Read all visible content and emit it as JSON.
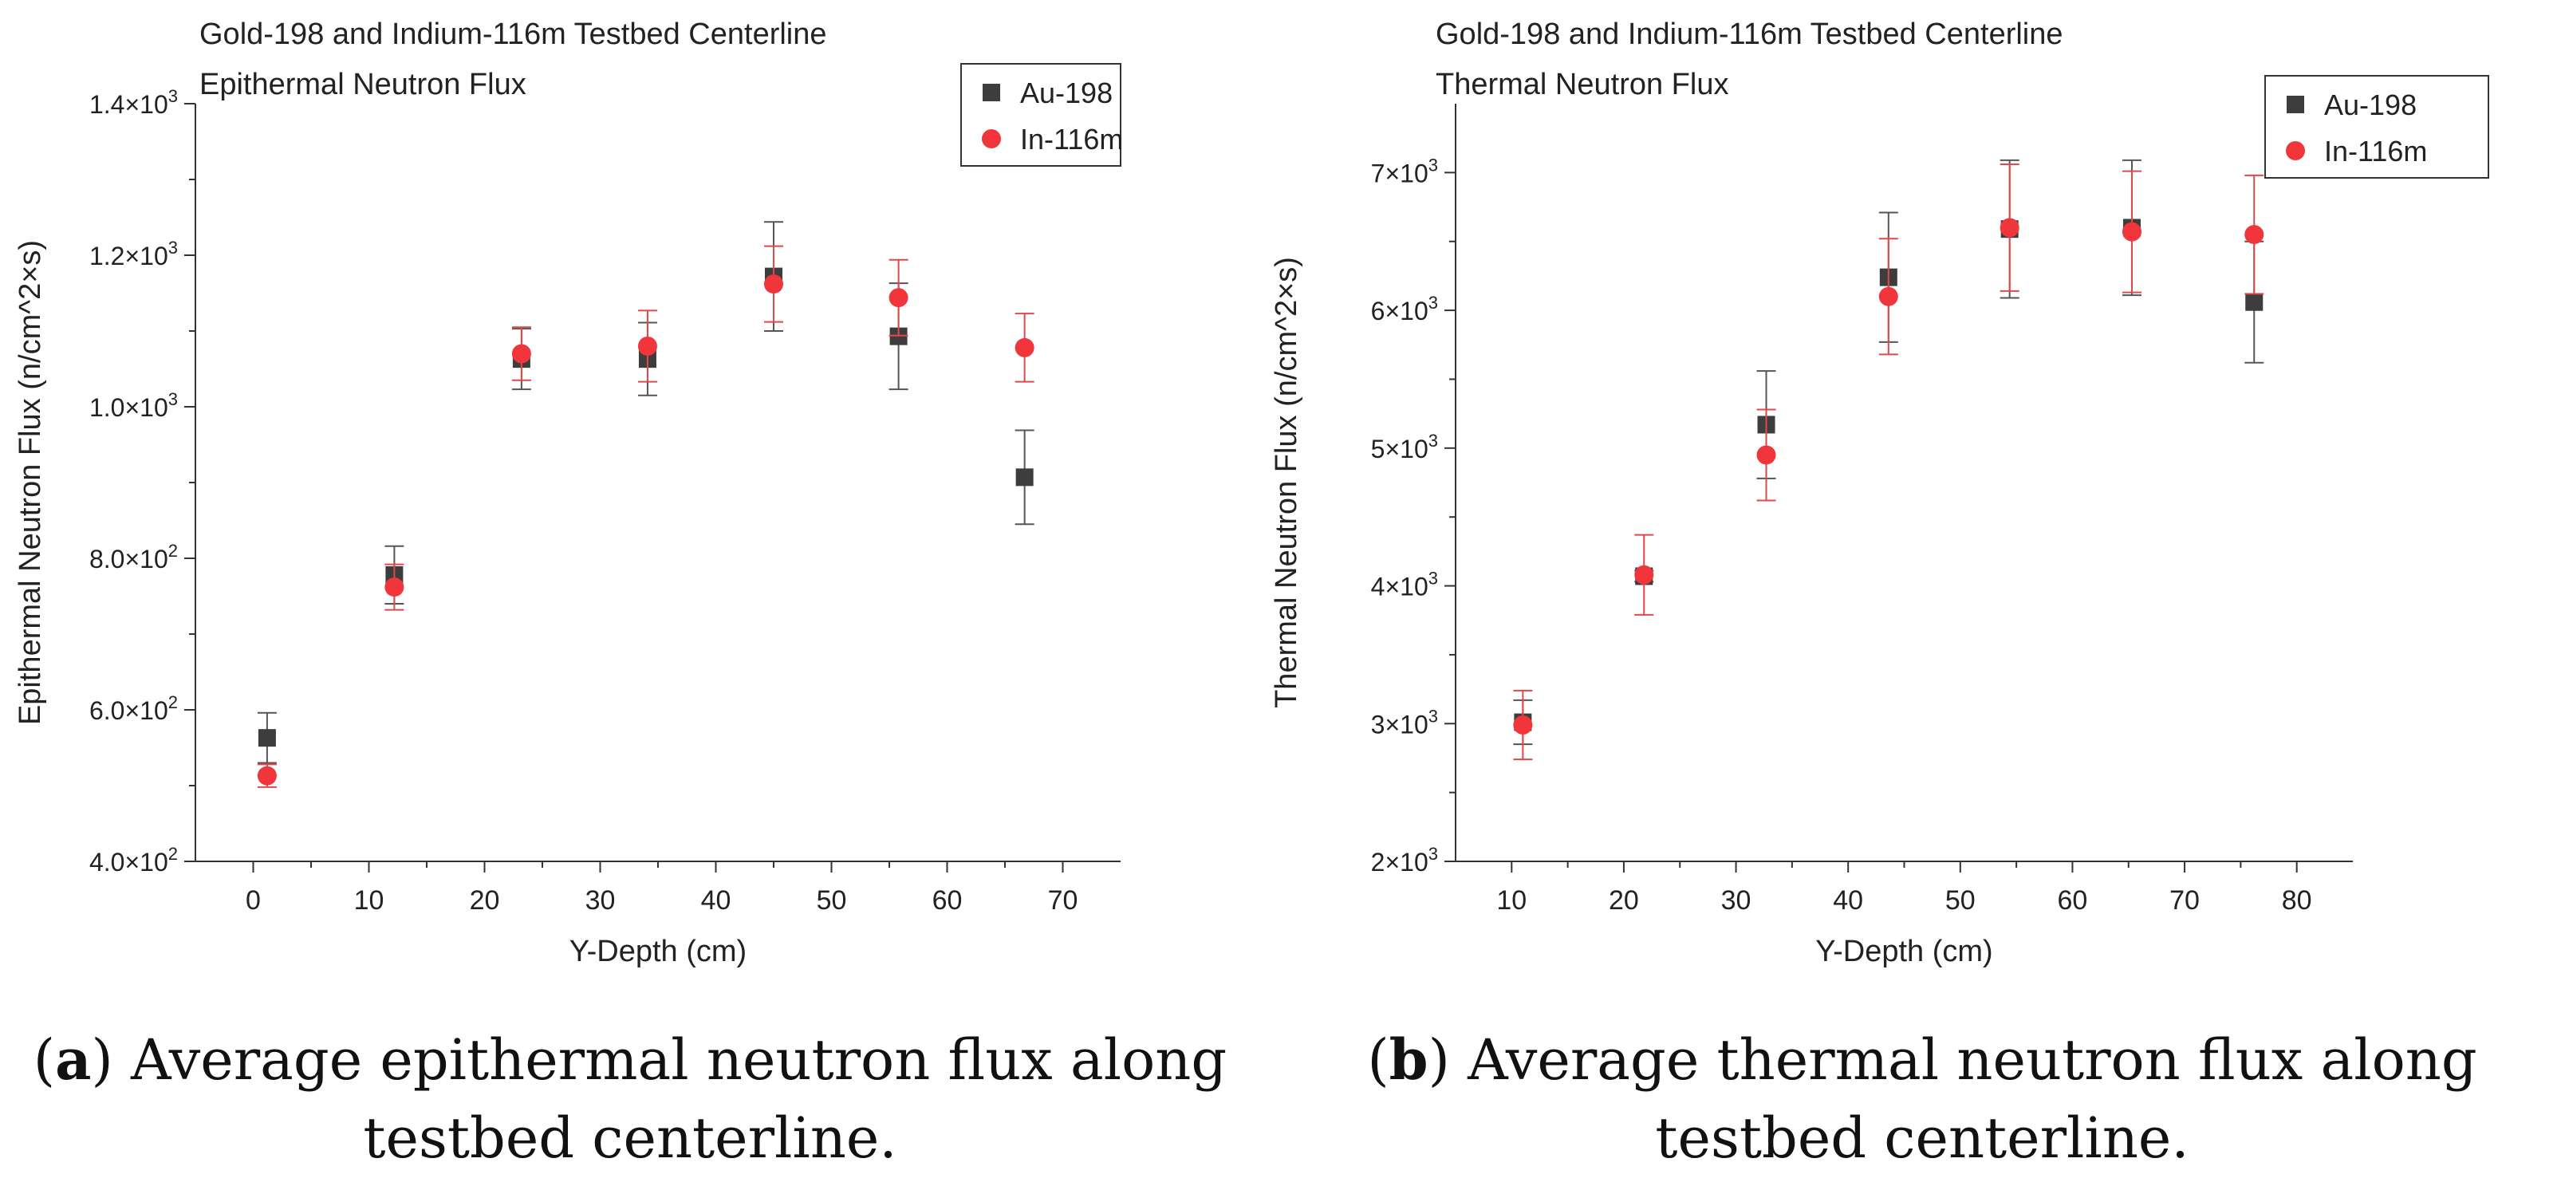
{
  "chart_data": [
    {
      "type": "scatter",
      "title": "Gold-198 and Indium-116m Testbed Centerline",
      "subtitle": "Epithermal Neutron Flux",
      "xlabel": "Y-Depth (cm)",
      "ylabel": "Epithermal Neutron Flux (n/cm^2×s)",
      "xlim": [
        -5,
        75
      ],
      "ylim": [
        400,
        1400
      ],
      "xticks": [
        0,
        10,
        20,
        30,
        40,
        50,
        60,
        70
      ],
      "xtick_labels": [
        "0",
        "10",
        "20",
        "30",
        "40",
        "50",
        "60",
        "70"
      ],
      "yticks": [
        400,
        600,
        800,
        1000,
        1200,
        1400
      ],
      "ytick_labels": [
        {
          "mant": "4.0×10",
          "exp": "2"
        },
        {
          "mant": "6.0×10",
          "exp": "2"
        },
        {
          "mant": "8.0×10",
          "exp": "2"
        },
        {
          "mant": "1.0×10",
          "exp": "3"
        },
        {
          "mant": "1.2×10",
          "exp": "3"
        },
        {
          "mant": "1.4×10",
          "exp": "3"
        }
      ],
      "legend": {
        "position": "top-right",
        "entries": [
          "Au-198",
          "In-116m"
        ]
      },
      "series": [
        {
          "name": "Au-198",
          "marker": "square",
          "color": "#3d3d3d",
          "x": [
            1.2,
            12.2,
            23.2,
            34.1,
            45.0,
            55.8,
            66.7
          ],
          "y": [
            563,
            778,
            1063,
            1063,
            1172,
            1093,
            907
          ],
          "err": [
            33,
            38,
            40,
            48,
            72,
            70,
            62
          ]
        },
        {
          "name": "In-116m",
          "marker": "circle",
          "color": "#f0353b",
          "x": [
            1.2,
            12.2,
            23.2,
            34.1,
            45.0,
            55.8,
            66.7
          ],
          "y": [
            513,
            762,
            1070,
            1080,
            1162,
            1144,
            1078
          ],
          "err": [
            15,
            30,
            35,
            47,
            50,
            50,
            45
          ]
        }
      ]
    },
    {
      "type": "scatter",
      "title": "Gold-198 and Indium-116m Testbed Centerline",
      "subtitle": "Thermal Neutron Flux",
      "xlabel": "Y-Depth (cm)",
      "ylabel": "Thermal Neutron Flux (n/cm^2×s)",
      "xlim": [
        5,
        85
      ],
      "ylim": [
        2000,
        7500
      ],
      "xticks": [
        10,
        20,
        30,
        40,
        50,
        60,
        70,
        80
      ],
      "xtick_labels": [
        "10",
        "20",
        "30",
        "40",
        "50",
        "60",
        "70",
        "80"
      ],
      "yticks": [
        2000,
        3000,
        4000,
        5000,
        6000,
        7000
      ],
      "ytick_labels": [
        {
          "mant": "2×10",
          "exp": "3"
        },
        {
          "mant": "3×10",
          "exp": "3"
        },
        {
          "mant": "4×10",
          "exp": "3"
        },
        {
          "mant": "5×10",
          "exp": "3"
        },
        {
          "mant": "6×10",
          "exp": "3"
        },
        {
          "mant": "7×10",
          "exp": "3"
        }
      ],
      "legend": {
        "position": "top-right",
        "entries": [
          "Au-198",
          "In-116m"
        ]
      },
      "series": [
        {
          "name": "Au-198",
          "marker": "square",
          "color": "#3d3d3d",
          "x": [
            11.0,
            21.8,
            32.7,
            43.6,
            54.4,
            65.3,
            76.2
          ],
          "y": [
            3010,
            4070,
            5170,
            6240,
            6590,
            6600,
            6060
          ],
          "err": [
            160,
            40,
            390,
            470,
            500,
            490,
            440
          ]
        },
        {
          "name": "In-116m",
          "marker": "circle",
          "color": "#f0353b",
          "x": [
            11.0,
            21.8,
            32.7,
            43.6,
            54.4,
            65.3,
            76.2
          ],
          "y": [
            2990,
            4080,
            4950,
            6100,
            6600,
            6570,
            6550
          ],
          "err": [
            250,
            290,
            330,
            420,
            460,
            440,
            430
          ]
        }
      ]
    }
  ],
  "captions": [
    {
      "label": "a",
      "text": " Average epithermal neutron flux along testbed centerline."
    },
    {
      "label": "b",
      "text": " Average thermal neutron flux along testbed centerline."
    }
  ]
}
